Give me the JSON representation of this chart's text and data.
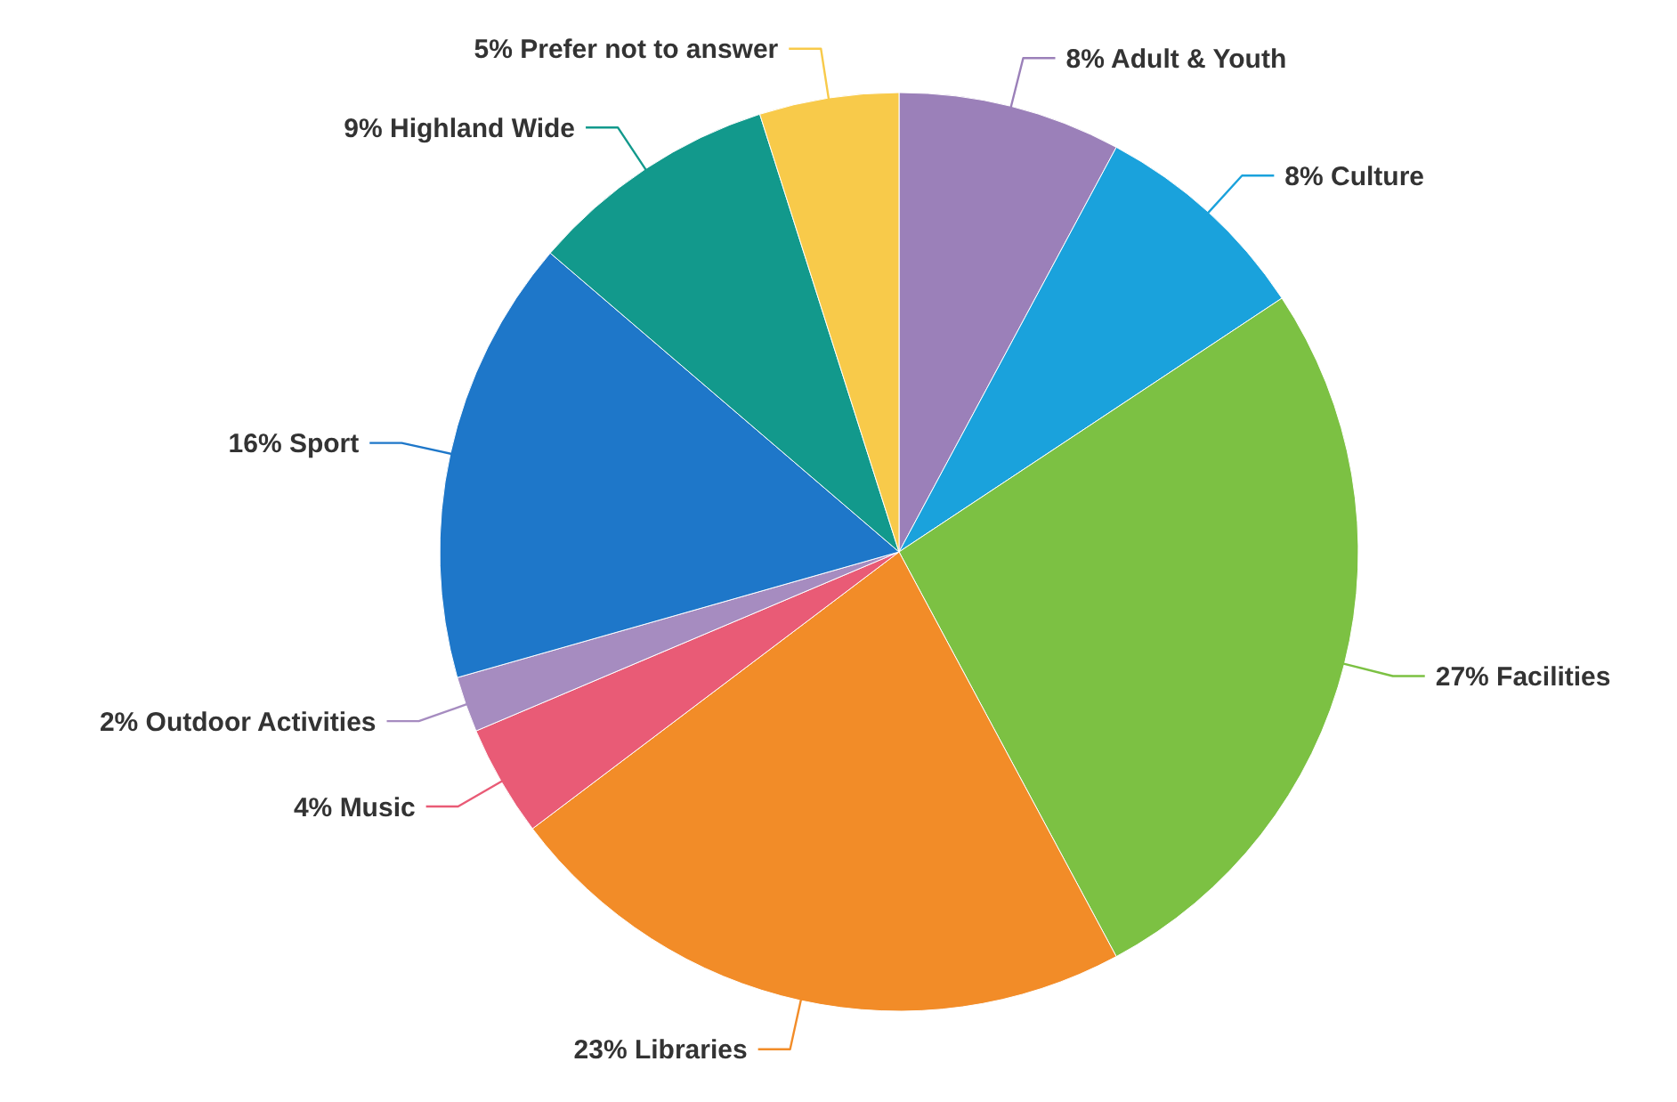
{
  "chart_data": {
    "type": "pie",
    "categories": [
      "Adult & Youth",
      "Culture",
      "Facilities",
      "Libraries",
      "Music",
      "Outdoor Activities",
      "Sport",
      "Highland Wide",
      "Prefer not to answer"
    ],
    "values": [
      8,
      8,
      27,
      23,
      4,
      2,
      16,
      9,
      5
    ],
    "value_labels": [
      "8%",
      "8%",
      "27%",
      "23%",
      "4%",
      "2%",
      "16%",
      "9%",
      "5%"
    ],
    "colors": [
      "#9b80b9",
      "#1aa2dc",
      "#7cc143",
      "#f28c28",
      "#e95b76",
      "#a68cc0",
      "#1e77c9",
      "#12998c",
      "#f8ca4a"
    ]
  }
}
